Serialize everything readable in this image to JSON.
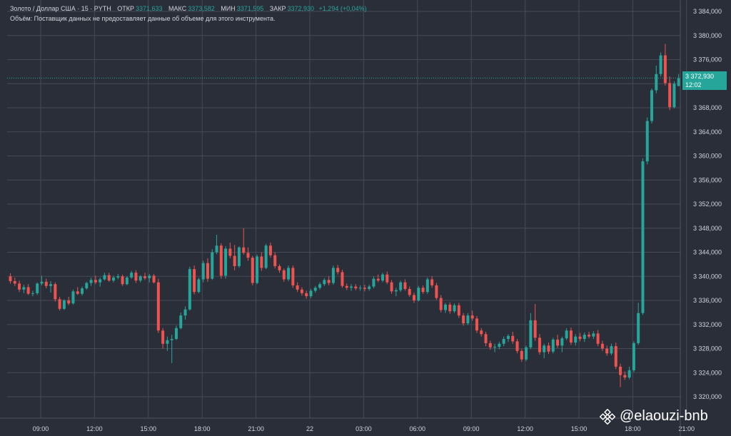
{
  "legend": {
    "symbol": "Золото / Доллар США · 15 · PYTH",
    "open_label": "ОТКР",
    "open_value": "3371,633",
    "high_label": "МАКС",
    "high_value": "3373,582",
    "low_label": "МИН",
    "low_value": "3371,595",
    "close_label": "ЗАКР",
    "close_value": "3372,930",
    "change_value": "+1,294 (+0,04%)",
    "volume_note": "Объём: Поставщик данных не предоставляет данные об объеме для этого инструмента."
  },
  "price_tag": {
    "price": "3 372,930",
    "countdown": "12:02"
  },
  "watermark": {
    "text": "@elaouzi-bnb"
  },
  "colors": {
    "background": "#2a2e39",
    "up": "#26a69a",
    "down": "#ef5350",
    "grid": "#454a56",
    "axis_text": "#d1d4dc"
  },
  "chart_data": {
    "type": "candlestick",
    "title": "Золото / Доллар США · 15 · PYTH",
    "y_ticks": [
      "3 384,000",
      "3 380,000",
      "3 376,000",
      "3 372,000",
      "3 368,000",
      "3 364,000",
      "3 360,000",
      "3 356,000",
      "3 352,000",
      "3 348,000",
      "3 344,000",
      "3 340,000",
      "3 336,000",
      "3 332,000",
      "3 328,000",
      "3 324,000",
      "3 320,000"
    ],
    "ylim": [
      3318,
      3386
    ],
    "x_ticks": [
      "09:00",
      "12:00",
      "15:00",
      "18:00",
      "21:00",
      "22",
      "03:00",
      "06:00",
      "09:00",
      "12:00",
      "15:00",
      "18:00",
      "21:00"
    ],
    "grid": true,
    "last_price": 3372.93,
    "candles": [
      [
        3340.0,
        3340.5,
        3338.8,
        3339.2
      ],
      [
        3339.2,
        3339.8,
        3338.4,
        3338.8
      ],
      [
        3338.8,
        3339.3,
        3337.4,
        3337.8
      ],
      [
        3337.8,
        3338.6,
        3337.2,
        3338.2
      ],
      [
        3338.2,
        3338.7,
        3336.9,
        3337.1
      ],
      [
        3337.1,
        3337.6,
        3336.7,
        3337.2
      ],
      [
        3337.2,
        3339.0,
        3336.9,
        3338.8
      ],
      [
        3338.8,
        3340.1,
        3338.5,
        3339.1
      ],
      [
        3339.1,
        3339.6,
        3338.0,
        3338.4
      ],
      [
        3338.4,
        3339.2,
        3337.3,
        3338.7
      ],
      [
        3338.7,
        3339.0,
        3335.8,
        3336.2
      ],
      [
        3336.2,
        3336.6,
        3334.3,
        3334.6
      ],
      [
        3334.6,
        3336.2,
        3334.4,
        3336.0
      ],
      [
        3336.0,
        3336.6,
        3335.2,
        3335.5
      ],
      [
        3335.5,
        3337.8,
        3335.3,
        3337.5
      ],
      [
        3337.5,
        3338.2,
        3336.9,
        3337.1
      ],
      [
        3337.1,
        3338.3,
        3336.8,
        3338.0
      ],
      [
        3338.0,
        3339.1,
        3337.8,
        3338.9
      ],
      [
        3338.9,
        3339.8,
        3338.4,
        3339.4
      ],
      [
        3339.4,
        3340.1,
        3338.7,
        3339.0
      ],
      [
        3339.0,
        3339.8,
        3338.3,
        3339.5
      ],
      [
        3339.5,
        3340.6,
        3339.3,
        3340.2
      ],
      [
        3340.2,
        3340.6,
        3339.1,
        3339.3
      ],
      [
        3339.3,
        3340.1,
        3339.0,
        3339.8
      ],
      [
        3339.8,
        3340.4,
        3339.5,
        3340.0
      ],
      [
        3340.0,
        3340.3,
        3338.4,
        3338.7
      ],
      [
        3338.7,
        3340.0,
        3338.5,
        3339.8
      ],
      [
        3339.8,
        3340.9,
        3339.6,
        3340.6
      ],
      [
        3340.6,
        3341.0,
        3338.9,
        3339.3
      ],
      [
        3339.3,
        3340.2,
        3339.0,
        3340.0
      ],
      [
        3340.0,
        3340.6,
        3339.4,
        3339.7
      ],
      [
        3339.7,
        3340.4,
        3339.0,
        3340.1
      ],
      [
        3340.1,
        3340.4,
        3338.8,
        3339.0
      ],
      [
        3339.0,
        3339.6,
        3330.6,
        3331.0
      ],
      [
        3331.0,
        3331.4,
        3328.0,
        3328.8
      ],
      [
        3328.8,
        3330.0,
        3327.6,
        3329.4
      ],
      [
        3329.4,
        3330.3,
        3325.6,
        3329.6
      ],
      [
        3329.6,
        3331.8,
        3329.4,
        3331.4
      ],
      [
        3331.4,
        3334.0,
        3331.2,
        3333.5
      ],
      [
        3333.5,
        3335.0,
        3332.8,
        3334.5
      ],
      [
        3334.5,
        3341.6,
        3334.3,
        3341.2
      ],
      [
        3341.2,
        3341.8,
        3337.0,
        3337.4
      ],
      [
        3337.4,
        3339.8,
        3337.2,
        3339.5
      ],
      [
        3339.5,
        3342.6,
        3339.0,
        3342.2
      ],
      [
        3342.2,
        3343.0,
        3339.1,
        3339.6
      ],
      [
        3339.6,
        3344.5,
        3339.4,
        3344.0
      ],
      [
        3344.0,
        3346.9,
        3343.7,
        3345.1
      ],
      [
        3345.1,
        3345.5,
        3339.6,
        3340.1
      ],
      [
        3340.1,
        3345.0,
        3339.6,
        3344.6
      ],
      [
        3344.6,
        3345.6,
        3343.0,
        3343.4
      ],
      [
        3343.4,
        3345.2,
        3341.0,
        3341.7
      ],
      [
        3341.7,
        3345.0,
        3341.4,
        3344.8
      ],
      [
        3344.8,
        3348.0,
        3343.6,
        3343.9
      ],
      [
        3343.9,
        3344.8,
        3342.6,
        3343.1
      ],
      [
        3343.1,
        3343.4,
        3338.5,
        3338.9
      ],
      [
        3338.9,
        3343.6,
        3338.7,
        3343.3
      ],
      [
        3343.3,
        3344.0,
        3340.9,
        3341.4
      ],
      [
        3341.4,
        3345.4,
        3341.2,
        3345.1
      ],
      [
        3345.1,
        3345.6,
        3343.1,
        3343.5
      ],
      [
        3343.5,
        3344.0,
        3341.3,
        3341.7
      ],
      [
        3341.7,
        3342.0,
        3340.6,
        3341.0
      ],
      [
        3341.0,
        3341.3,
        3339.1,
        3339.5
      ],
      [
        3339.5,
        3341.8,
        3339.2,
        3341.4
      ],
      [
        3341.4,
        3341.8,
        3338.1,
        3338.5
      ],
      [
        3338.5,
        3339.0,
        3337.4,
        3337.8
      ],
      [
        3337.8,
        3338.2,
        3336.8,
        3337.2
      ],
      [
        3337.2,
        3337.6,
        3336.3,
        3336.7
      ],
      [
        3336.7,
        3337.9,
        3336.4,
        3337.6
      ],
      [
        3337.6,
        3338.4,
        3337.3,
        3338.1
      ],
      [
        3338.1,
        3339.0,
        3337.8,
        3338.7
      ],
      [
        3338.7,
        3339.7,
        3338.4,
        3339.4
      ],
      [
        3339.4,
        3340.0,
        3338.5,
        3338.9
      ],
      [
        3338.9,
        3341.8,
        3338.6,
        3341.4
      ],
      [
        3341.4,
        3341.9,
        3340.3,
        3340.7
      ],
      [
        3340.7,
        3341.1,
        3338.1,
        3338.4
      ],
      [
        3338.4,
        3338.8,
        3337.7,
        3338.1
      ],
      [
        3338.1,
        3338.7,
        3337.6,
        3338.3
      ],
      [
        3338.3,
        3338.7,
        3337.7,
        3338.0
      ],
      [
        3338.0,
        3338.5,
        3337.6,
        3338.1
      ],
      [
        3338.1,
        3338.6,
        3337.5,
        3337.9
      ],
      [
        3337.9,
        3338.6,
        3337.6,
        3338.3
      ],
      [
        3338.3,
        3340.0,
        3338.0,
        3339.6
      ],
      [
        3339.6,
        3340.3,
        3339.0,
        3339.3
      ],
      [
        3339.3,
        3340.6,
        3339.0,
        3340.3
      ],
      [
        3340.3,
        3340.8,
        3338.7,
        3339.0
      ],
      [
        3339.0,
        3339.4,
        3337.1,
        3337.5
      ],
      [
        3337.5,
        3338.1,
        3336.7,
        3337.7
      ],
      [
        3337.7,
        3339.3,
        3337.4,
        3339.0
      ],
      [
        3339.0,
        3339.5,
        3337.6,
        3337.9
      ],
      [
        3337.9,
        3338.3,
        3336.6,
        3336.9
      ],
      [
        3336.9,
        3337.3,
        3335.6,
        3336.0
      ],
      [
        3336.0,
        3338.4,
        3335.8,
        3338.1
      ],
      [
        3338.1,
        3338.5,
        3337.1,
        3337.4
      ],
      [
        3337.4,
        3339.8,
        3337.1,
        3339.5
      ],
      [
        3339.5,
        3340.0,
        3338.1,
        3338.5
      ],
      [
        3338.5,
        3338.9,
        3336.1,
        3336.4
      ],
      [
        3336.4,
        3336.9,
        3334.0,
        3334.4
      ],
      [
        3334.4,
        3335.6,
        3333.9,
        3335.3
      ],
      [
        3335.3,
        3335.7,
        3333.8,
        3334.2
      ],
      [
        3334.2,
        3335.5,
        3333.9,
        3335.2
      ],
      [
        3335.2,
        3335.6,
        3333.1,
        3333.5
      ],
      [
        3333.5,
        3333.9,
        3331.8,
        3332.2
      ],
      [
        3332.2,
        3333.9,
        3331.9,
        3333.5
      ],
      [
        3333.5,
        3334.3,
        3332.6,
        3333.0
      ],
      [
        3333.0,
        3333.4,
        3330.6,
        3331.0
      ],
      [
        3331.0,
        3331.4,
        3330.0,
        3330.4
      ],
      [
        3330.4,
        3330.8,
        3328.4,
        3328.9
      ],
      [
        3328.9,
        3329.3,
        3327.8,
        3328.2
      ],
      [
        3328.2,
        3328.8,
        3327.4,
        3328.3
      ],
      [
        3328.3,
        3329.1,
        3327.9,
        3328.8
      ],
      [
        3328.8,
        3330.0,
        3328.4,
        3329.6
      ],
      [
        3329.6,
        3330.4,
        3329.1,
        3330.1
      ],
      [
        3330.1,
        3330.8,
        3328.8,
        3329.2
      ],
      [
        3329.2,
        3329.6,
        3327.2,
        3327.6
      ],
      [
        3327.6,
        3327.9,
        3325.8,
        3326.2
      ],
      [
        3326.2,
        3328.5,
        3325.9,
        3328.2
      ],
      [
        3328.2,
        3333.9,
        3327.9,
        3332.7
      ],
      [
        3332.7,
        3335.4,
        3329.3,
        3329.8
      ],
      [
        3329.8,
        3330.4,
        3327.0,
        3327.4
      ],
      [
        3327.4,
        3328.8,
        3326.4,
        3328.5
      ],
      [
        3328.5,
        3329.0,
        3327.1,
        3327.5
      ],
      [
        3327.5,
        3329.8,
        3327.2,
        3329.5
      ],
      [
        3329.5,
        3330.3,
        3328.1,
        3328.5
      ],
      [
        3328.5,
        3330.0,
        3327.4,
        3329.7
      ],
      [
        3329.7,
        3331.4,
        3329.4,
        3331.0
      ],
      [
        3331.0,
        3331.5,
        3328.6,
        3329.0
      ],
      [
        3329.0,
        3330.4,
        3328.5,
        3330.0
      ],
      [
        3330.0,
        3330.6,
        3329.2,
        3329.6
      ],
      [
        3329.6,
        3330.7,
        3329.1,
        3330.3
      ],
      [
        3330.3,
        3330.8,
        3329.7,
        3330.0
      ],
      [
        3330.0,
        3330.9,
        3329.6,
        3330.5
      ],
      [
        3330.5,
        3331.1,
        3328.4,
        3328.8
      ],
      [
        3328.8,
        3329.3,
        3327.6,
        3328.0
      ],
      [
        3328.0,
        3328.5,
        3326.8,
        3327.2
      ],
      [
        3327.2,
        3328.8,
        3326.9,
        3328.4
      ],
      [
        3328.4,
        3329.0,
        3324.6,
        3325.0
      ],
      [
        3325.0,
        3325.5,
        3321.6,
        3323.6
      ],
      [
        3323.6,
        3324.2,
        3322.8,
        3323.2
      ],
      [
        3323.2,
        3325.0,
        3322.9,
        3324.4
      ],
      [
        3324.4,
        3329.2,
        3324.1,
        3328.9
      ],
      [
        3328.9,
        3335.6,
        3328.6,
        3333.9
      ],
      [
        3333.9,
        3359.6,
        3333.6,
        3359.1
      ],
      [
        3359.1,
        3366.4,
        3358.6,
        3365.8
      ],
      [
        3365.8,
        3371.2,
        3365.4,
        3370.9
      ],
      [
        3370.9,
        3375.0,
        3370.4,
        3373.6
      ],
      [
        3373.6,
        3377.2,
        3373.2,
        3376.7
      ],
      [
        3376.7,
        3378.6,
        3371.7,
        3372.1
      ],
      [
        3372.1,
        3373.2,
        3367.6,
        3368.1
      ],
      [
        3368.1,
        3372.4,
        3367.9,
        3372.0
      ],
      [
        3371.6,
        3373.6,
        3371.6,
        3372.9
      ]
    ]
  }
}
